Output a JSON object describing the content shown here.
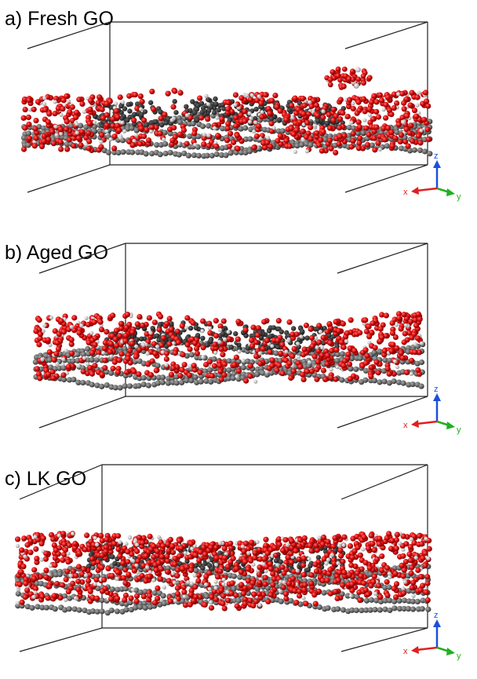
{
  "panels": [
    {
      "label": "a) Fresh GO",
      "axes": {
        "z": "z",
        "x": "x",
        "y": "y"
      }
    },
    {
      "label": "b) Aged GO",
      "axes": {
        "z": "z",
        "x": "x",
        "y": "y"
      }
    },
    {
      "label": "c) LK GO",
      "axes": {
        "z": "z",
        "x": "x",
        "y": "y"
      }
    }
  ]
}
